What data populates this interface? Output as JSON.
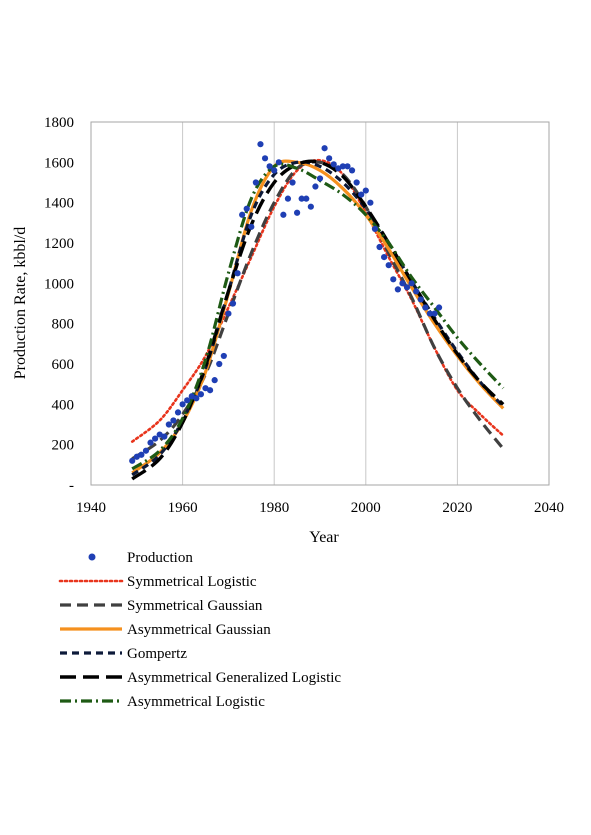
{
  "chart_data": {
    "type": "line",
    "title": "",
    "xlabel": "Year",
    "ylabel": "Production Rate, kbbl/d",
    "xlim": [
      1940,
      2040
    ],
    "ylim": [
      0,
      1800
    ],
    "x_ticks": [
      1940,
      1960,
      1980,
      2000,
      2020,
      2040
    ],
    "y_ticks": [
      0,
      200,
      400,
      600,
      800,
      1000,
      1200,
      1400,
      1600,
      1800
    ],
    "x_tick_labels": [
      "1940",
      "1960",
      "1980",
      "2000",
      "2020",
      "2040"
    ],
    "y_tick_labels": [
      "-",
      "200",
      "400",
      "600",
      "800",
      "1000",
      "1200",
      "1400",
      "1600",
      "1800"
    ],
    "grid": "vertical",
    "legend_position": "bottom",
    "series": [
      {
        "name": "Production",
        "style": "markers",
        "color": "#1f3fb4",
        "x": [
          1949,
          1950,
          1951,
          1952,
          1953,
          1954,
          1955,
          1956,
          1957,
          1958,
          1959,
          1960,
          1961,
          1962,
          1963,
          1964,
          1965,
          1966,
          1967,
          1968,
          1969,
          1970,
          1971,
          1972,
          1973,
          1974,
          1975,
          1976,
          1977,
          1978,
          1979,
          1980,
          1981,
          1982,
          1983,
          1984,
          1985,
          1986,
          1987,
          1988,
          1989,
          1990,
          1991,
          1992,
          1993,
          1994,
          1995,
          1996,
          1997,
          1998,
          1999,
          2000,
          2001,
          2002,
          2003,
          2004,
          2005,
          2006,
          2007,
          2008,
          2009,
          2010,
          2011,
          2012,
          2013,
          2014,
          2015,
          2016
        ],
        "y": [
          120,
          140,
          150,
          170,
          210,
          230,
          250,
          240,
          300,
          320,
          360,
          400,
          420,
          440,
          430,
          450,
          480,
          470,
          520,
          600,
          640,
          850,
          900,
          1050,
          1340,
          1370,
          1280,
          1500,
          1690,
          1620,
          1580,
          1560,
          1600,
          1340,
          1420,
          1500,
          1350,
          1420,
          1420,
          1380,
          1480,
          1520,
          1670,
          1620,
          1590,
          1570,
          1580,
          1580,
          1560,
          1500,
          1440,
          1460,
          1400,
          1270,
          1180,
          1130,
          1090,
          1020,
          970,
          1000,
          980,
          1000,
          960,
          920,
          880,
          850,
          850,
          880
        ]
      },
      {
        "name": "Symmetrical Logistic",
        "style": "dotted",
        "color": "#e8341c",
        "x": [
          1949,
          1955,
          1960,
          1965,
          1970,
          1975,
          1980,
          1985,
          1990,
          1995,
          2000,
          2005,
          2010,
          2015,
          2020,
          2025,
          2030
        ],
        "y": [
          215,
          320,
          470,
          640,
          880,
          1130,
          1380,
          1560,
          1610,
          1540,
          1350,
          1130,
          920,
          680,
          470,
          350,
          245
        ]
      },
      {
        "name": "Symmetrical Gaussian",
        "style": "dashed",
        "color": "#404040",
        "x": [
          1949,
          1955,
          1960,
          1965,
          1970,
          1975,
          1980,
          1985,
          1990,
          1995,
          2000,
          2005,
          2010,
          2015,
          2020,
          2025,
          2030
        ],
        "y": [
          130,
          220,
          350,
          550,
          850,
          1150,
          1400,
          1570,
          1600,
          1540,
          1380,
          1150,
          930,
          680,
          480,
          320,
          180
        ]
      },
      {
        "name": "Asymmetrical Gaussian",
        "style": "solid",
        "color": "#f5901e",
        "x": [
          1949,
          1955,
          1960,
          1965,
          1970,
          1975,
          1980,
          1985,
          1990,
          1995,
          2000,
          2005,
          2010,
          2015,
          2020,
          2025,
          2030
        ],
        "y": [
          60,
          160,
          310,
          560,
          950,
          1360,
          1580,
          1600,
          1560,
          1470,
          1340,
          1170,
          980,
          800,
          640,
          500,
          380
        ]
      },
      {
        "name": "Gompertz",
        "style": "short-dash",
        "color": "#0d1a3a",
        "x": [
          1949,
          1955,
          1960,
          1965,
          1970,
          1975,
          1980,
          1985,
          1990,
          1995,
          2000,
          2005,
          2010,
          2015,
          2020,
          2025,
          2030
        ],
        "y": [
          50,
          150,
          320,
          580,
          960,
          1340,
          1540,
          1600,
          1580,
          1500,
          1370,
          1200,
          1010,
          830,
          660,
          510,
          390
        ]
      },
      {
        "name": "Asymmetrical Generalized Logistic",
        "style": "long-dash",
        "color": "#000000",
        "x": [
          1949,
          1955,
          1960,
          1965,
          1970,
          1975,
          1980,
          1985,
          1990,
          1995,
          2000,
          2005,
          2010,
          2015,
          2020,
          2025,
          2030
        ],
        "y": [
          30,
          130,
          310,
          590,
          960,
          1290,
          1500,
          1590,
          1600,
          1530,
          1380,
          1200,
          1010,
          820,
          650,
          510,
          400
        ]
      },
      {
        "name": "Asymmetrical Logistic",
        "style": "dash-dot",
        "color": "#1e5a14",
        "x": [
          1949,
          1955,
          1960,
          1965,
          1970,
          1975,
          1980,
          1985,
          1990,
          1995,
          2000,
          2005,
          2010,
          2015,
          2020,
          2025,
          2030
        ],
        "y": [
          80,
          170,
          330,
          620,
          1050,
          1420,
          1580,
          1570,
          1510,
          1440,
          1340,
          1200,
          1030,
          880,
          730,
          600,
          480
        ]
      }
    ]
  }
}
